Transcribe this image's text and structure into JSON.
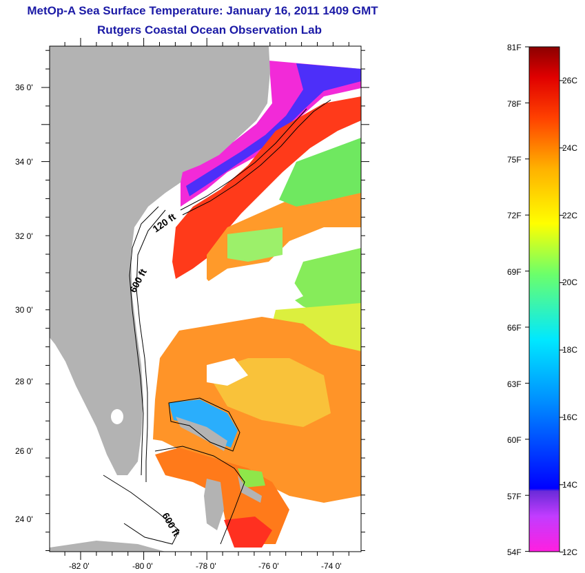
{
  "header": {
    "title": "MetOp-A Sea Surface Temperature:  January 16, 2011 1409 GMT",
    "subtitle": "Rutgers Coastal Ocean Observation Lab"
  },
  "map": {
    "lat_labels": [
      "36 0'",
      "34 0'",
      "32 0'",
      "30 0'",
      "28 0'",
      "26 0'",
      "24 0'"
    ],
    "lon_labels": [
      "-82 0'",
      "-80 0'",
      "-78 0'",
      "-76 0'",
      "-74 0'"
    ],
    "contours": [
      {
        "label": "120 ft"
      },
      {
        "label": "600 ft"
      },
      {
        "label": "600 ft"
      }
    ],
    "land_color": "#b3b3b3",
    "no_data_color": "#ffffff"
  },
  "colorbar": {
    "f_labels": [
      "81F",
      "78F",
      "75F",
      "72F",
      "69F",
      "66F",
      "63F",
      "60F",
      "57F",
      "54F"
    ],
    "c_labels": [
      "26C",
      "24C",
      "22C",
      "20C",
      "18C",
      "16C",
      "14C",
      "12C"
    ]
  }
}
